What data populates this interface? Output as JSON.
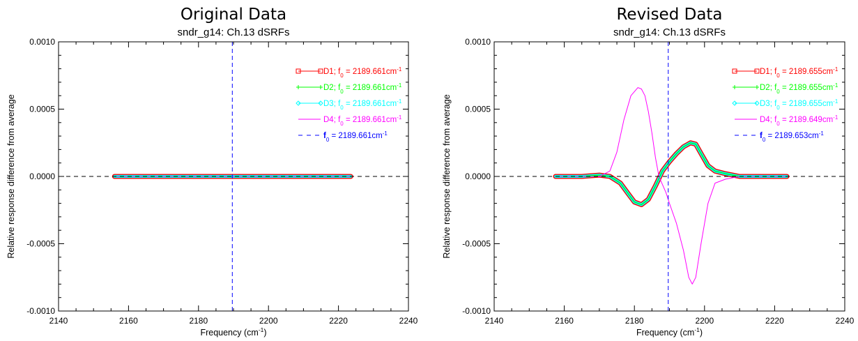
{
  "chart_data": [
    {
      "type": "line",
      "title": "Original Data",
      "subtitle": "sndr_g14: Ch.13 dSRFs",
      "xlabel": "Frequency (cm",
      "xlabel_sup": "-1",
      "xlabel_end": ")",
      "ylabel": "Relative response difference from average",
      "xlim": [
        2140,
        2240
      ],
      "ylim": [
        -0.001,
        0.001
      ],
      "xticks": [
        2140,
        2160,
        2180,
        2200,
        2220,
        2240
      ],
      "yticks": [
        -0.001,
        -0.0005,
        0.0,
        0.0005,
        0.001
      ],
      "ytick_labels": [
        "-0.0010",
        "-0.0005",
        "0.0000",
        "0.0005",
        "0.0010"
      ],
      "grid": false,
      "legend_position": "top-right",
      "zero_line": 0,
      "center_line": {
        "label": "f",
        "sub": "0",
        "value": "= 2189.661cm",
        "sup": "-1",
        "x": 2189.661,
        "color": "#0000ff"
      },
      "series": [
        {
          "name": "D1; f",
          "sub": "0",
          "value": "= 2189.661cm",
          "sup": "-1",
          "color": "#ff0000",
          "marker": "square",
          "x": [
            2156,
            2165,
            2175,
            2180,
            2185,
            2190,
            2195,
            2200,
            2205,
            2210,
            2215,
            2223.5
          ],
          "y": [
            0,
            0,
            0,
            0,
            0,
            0,
            0,
            0,
            0,
            0,
            0,
            0
          ]
        },
        {
          "name": "D2; f",
          "sub": "0",
          "value": "= 2189.661cm",
          "sup": "-1",
          "color": "#00ff00",
          "marker": "plus",
          "x": [
            2156,
            2165,
            2175,
            2180,
            2185,
            2190,
            2195,
            2200,
            2205,
            2210,
            2215,
            2223.5
          ],
          "y": [
            0,
            0,
            0,
            0,
            0,
            0,
            0,
            0,
            0,
            0,
            0,
            0
          ]
        },
        {
          "name": "D3; f",
          "sub": "0",
          "value": "= 2189.661cm",
          "sup": "-1",
          "color": "#00ffff",
          "marker": "diamond",
          "x": [
            2156,
            2165,
            2175,
            2180,
            2185,
            2190,
            2195,
            2200,
            2205,
            2210,
            2215,
            2223.5
          ],
          "y": [
            0,
            0,
            0,
            0,
            0,
            0,
            0,
            0,
            0,
            0,
            0,
            0
          ]
        },
        {
          "name": "D4; f",
          "sub": "0",
          "value": "= 2189.661cm",
          "sup": "-1",
          "color": "#ff00ff",
          "marker": "none",
          "x": [
            2156,
            2165,
            2175,
            2180,
            2185,
            2190,
            2195,
            2200,
            2205,
            2210,
            2215,
            2223.5
          ],
          "y": [
            0,
            0,
            0,
            0,
            0,
            0,
            0,
            0,
            0,
            0,
            0,
            0
          ]
        }
      ]
    },
    {
      "type": "line",
      "title": "Revised Data",
      "subtitle": "sndr_g14: Ch.13 dSRFs",
      "xlabel": "Frequency (cm",
      "xlabel_sup": "-1",
      "xlabel_end": ")",
      "ylabel": "Relative response difference from average",
      "xlim": [
        2140,
        2240
      ],
      "ylim": [
        -0.001,
        0.001
      ],
      "xticks": [
        2140,
        2160,
        2180,
        2200,
        2220,
        2240
      ],
      "yticks": [
        -0.001,
        -0.0005,
        0.0,
        0.0005,
        0.001
      ],
      "ytick_labels": [
        "-0.0010",
        "-0.0005",
        "0.0000",
        "0.0005",
        "0.0010"
      ],
      "grid": false,
      "legend_position": "top-right",
      "zero_line": 0,
      "center_line": {
        "label": "f",
        "sub": "0",
        "value": "= 2189.653cm",
        "sup": "-1",
        "x": 2189.653,
        "color": "#0000ff"
      },
      "series": [
        {
          "name": "D1; f",
          "sub": "0",
          "value": "= 2189.655cm",
          "sup": "-1",
          "color": "#ff0000",
          "marker": "square",
          "x": [
            2157.5,
            2165,
            2170,
            2173,
            2176,
            2178,
            2180,
            2182,
            2184,
            2186,
            2188,
            2190,
            2192,
            2194,
            2196,
            2197.5,
            2199,
            2201,
            2203,
            2206,
            2210,
            2215,
            2223.5
          ],
          "y": [
            0.0,
            0.0,
            1e-05,
            0.0,
            -5e-05,
            -0.00012,
            -0.00019,
            -0.00021,
            -0.00017,
            -7e-05,
            4e-05,
            0.00011,
            0.00017,
            0.00022,
            0.00025,
            0.00024,
            0.00017,
            8e-05,
            4e-05,
            2e-05,
            0.0,
            0.0,
            0.0
          ]
        },
        {
          "name": "D2; f",
          "sub": "0",
          "value": "= 2189.655cm",
          "sup": "-1",
          "color": "#00ff00",
          "marker": "plus",
          "x": [
            2157.5,
            2165,
            2170,
            2173,
            2176,
            2178,
            2180,
            2182,
            2184,
            2186,
            2188,
            2190,
            2192,
            2194,
            2196,
            2197.5,
            2199,
            2201,
            2203,
            2206,
            2210,
            2215,
            2223.5
          ],
          "y": [
            0.0,
            0.0,
            1e-05,
            0.0,
            -5e-05,
            -0.00012,
            -0.00019,
            -0.00021,
            -0.00017,
            -7e-05,
            4e-05,
            0.00011,
            0.00017,
            0.00022,
            0.00025,
            0.00024,
            0.00017,
            8e-05,
            4e-05,
            2e-05,
            0.0,
            0.0,
            0.0
          ]
        },
        {
          "name": "D3; f",
          "sub": "0",
          "value": "= 2189.655cm",
          "sup": "-1",
          "color": "#00ffff",
          "marker": "diamond",
          "x": [
            2157.5,
            2165,
            2170,
            2173,
            2176,
            2178,
            2180,
            2182,
            2184,
            2186,
            2188,
            2190,
            2192,
            2194,
            2196,
            2197.5,
            2199,
            2201,
            2203,
            2206,
            2210,
            2215,
            2223.5
          ],
          "y": [
            0.0,
            0.0,
            1e-05,
            0.0,
            -5e-05,
            -0.00012,
            -0.00019,
            -0.00021,
            -0.00017,
            -7e-05,
            4e-05,
            0.00011,
            0.00017,
            0.00022,
            0.00025,
            0.00024,
            0.00017,
            8e-05,
            4e-05,
            2e-05,
            0.0,
            0.0,
            0.0
          ]
        },
        {
          "name": "D4; f",
          "sub": "0",
          "value": "= 2189.649cm",
          "sup": "-1",
          "color": "#ff00ff",
          "marker": "none",
          "x": [
            2157.5,
            2165,
            2170,
            2173,
            2175,
            2177,
            2179,
            2181,
            2182,
            2183,
            2184,
            2185,
            2186,
            2187,
            2188,
            2189,
            2190,
            2192,
            2194,
            2195.5,
            2196.5,
            2197.5,
            2199,
            2201,
            2203,
            2206,
            2210,
            2215,
            2223.5
          ],
          "y": [
            0.0,
            0.0,
            0.0,
            4e-05,
            0.00018,
            0.00042,
            0.0006,
            0.00066,
            0.00065,
            0.0006,
            0.00048,
            0.00032,
            0.00014,
            0.0,
            -6e-05,
            -0.00012,
            -0.0002,
            -0.00035,
            -0.00055,
            -0.00075,
            -0.0008,
            -0.00075,
            -0.0005,
            -0.0002,
            -5e-05,
            -2e-05,
            0.0,
            0.0,
            0.0
          ]
        }
      ]
    }
  ]
}
